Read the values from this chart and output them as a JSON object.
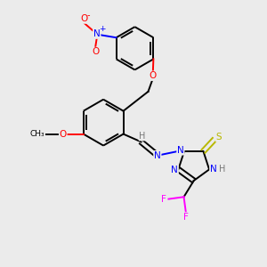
{
  "background_color": "#ebebeb",
  "bond_color": "#000000",
  "atom_colors": {
    "O": "#ff0000",
    "N": "#0000ff",
    "S": "#b8b800",
    "F": "#ff00ff",
    "H": "#777777",
    "C": "#000000"
  },
  "figsize": [
    3.0,
    3.0
  ],
  "dpi": 100
}
